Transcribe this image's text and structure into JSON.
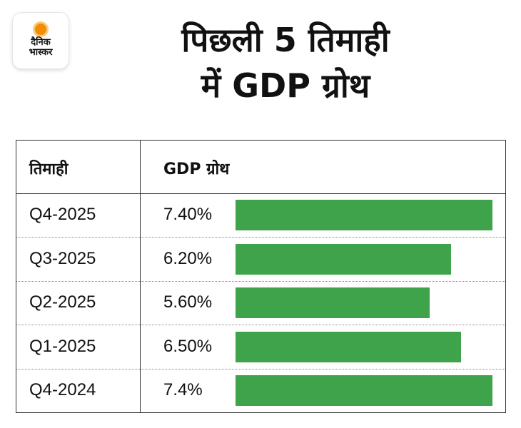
{
  "logo": {
    "line1": "दैनिक",
    "line2": "भास्कर"
  },
  "title": {
    "line1": "पिछली 5 तिमाही",
    "line2": "में GDP ग्रोथ"
  },
  "colors": {
    "bar": "#3ea34a",
    "border": "#333333"
  },
  "chart_data": {
    "type": "bar",
    "orientation": "horizontal",
    "title": "पिछली 5 तिमाही में GDP ग्रोथ",
    "column_headers": [
      "तिमाही",
      "GDP ग्रोथ"
    ],
    "categories": [
      "Q4-2025",
      "Q3-2025",
      "Q2-2025",
      "Q1-2025",
      "Q4-2024"
    ],
    "values": [
      7.4,
      6.2,
      5.6,
      6.5,
      7.4
    ],
    "value_labels": [
      "7.40%",
      "6.20%",
      "5.60%",
      "6.50%",
      "7.4%"
    ],
    "unit": "%",
    "xlim": [
      0,
      7.4
    ],
    "grid": false
  }
}
